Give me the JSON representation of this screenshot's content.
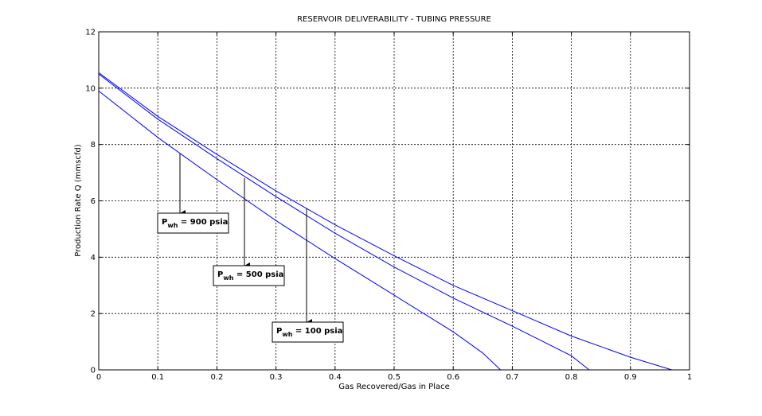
{
  "chart_data": {
    "type": "line",
    "title": "RESERVOIR DELIVERABILITY - TUBING PRESSURE",
    "x_label": "Gas Recovered/Gas in Place",
    "y_label": "Production Rate Q (mmscfd)",
    "xlim": [
      0,
      1
    ],
    "ylim": [
      0,
      12
    ],
    "xticks": [
      0,
      0.1,
      0.2,
      0.3,
      0.4,
      0.5,
      0.6,
      0.7,
      0.8,
      0.9,
      1
    ],
    "yticks": [
      0,
      2,
      4,
      6,
      8,
      10,
      12
    ],
    "grid": true,
    "series": [
      {
        "color": "#0000ff",
        "x": [
          0,
          0.1,
          0.2,
          0.3,
          0.4,
          0.5,
          0.6,
          0.7,
          0.8,
          0.9,
          0.97
        ],
        "values": [
          10.55,
          9.0,
          7.65,
          6.35,
          5.15,
          4.05,
          3.0,
          2.1,
          1.2,
          0.45,
          0
        ]
      },
      {
        "color": "#0000ff",
        "x": [
          0,
          0.1,
          0.2,
          0.3,
          0.4,
          0.5,
          0.6,
          0.7,
          0.8,
          0.83
        ],
        "values": [
          10.5,
          8.9,
          7.5,
          6.15,
          4.85,
          3.65,
          2.55,
          1.55,
          0.5,
          0
        ]
      },
      {
        "color": "#0000ff",
        "x": [
          0,
          0.1,
          0.2,
          0.3,
          0.4,
          0.5,
          0.6,
          0.65,
          0.68
        ],
        "values": [
          9.9,
          8.25,
          6.75,
          5.3,
          3.95,
          2.65,
          1.35,
          0.6,
          0
        ]
      }
    ],
    "annotations": [
      {
        "text": "P",
        "subscript": "wh",
        "suffix": " = 900 psia"
      },
      {
        "text": "P",
        "subscript": "wh",
        "suffix": " = 500 psia"
      },
      {
        "text": "P",
        "subscript": "wh",
        "suffix": " = 100 psia"
      }
    ]
  }
}
